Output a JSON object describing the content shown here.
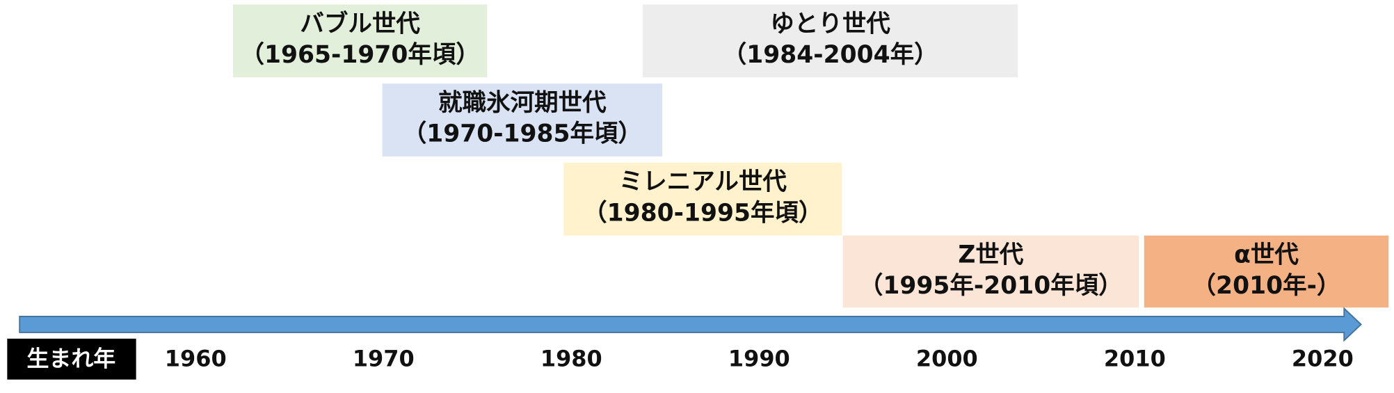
{
  "birth_year_label": "生まれ年",
  "axis_labels": [
    "1960",
    "1970",
    "1980",
    "1990",
    "2000",
    "2010",
    "2020"
  ],
  "generations": [
    {
      "name": "バブル世代",
      "period": "（1965-1970年頃）"
    },
    {
      "name": "ゆとり世代",
      "period": "（1984-2004年）"
    },
    {
      "name": "就職氷河期世代",
      "period": "（1970-1985年頃）"
    },
    {
      "name": "ミレニアル世代",
      "period": "（1980-1995年頃）"
    },
    {
      "name": "Z世代",
      "period": "（1995年-2010年頃）"
    },
    {
      "name": "α世代",
      "period": "（2010年-）"
    }
  ]
}
